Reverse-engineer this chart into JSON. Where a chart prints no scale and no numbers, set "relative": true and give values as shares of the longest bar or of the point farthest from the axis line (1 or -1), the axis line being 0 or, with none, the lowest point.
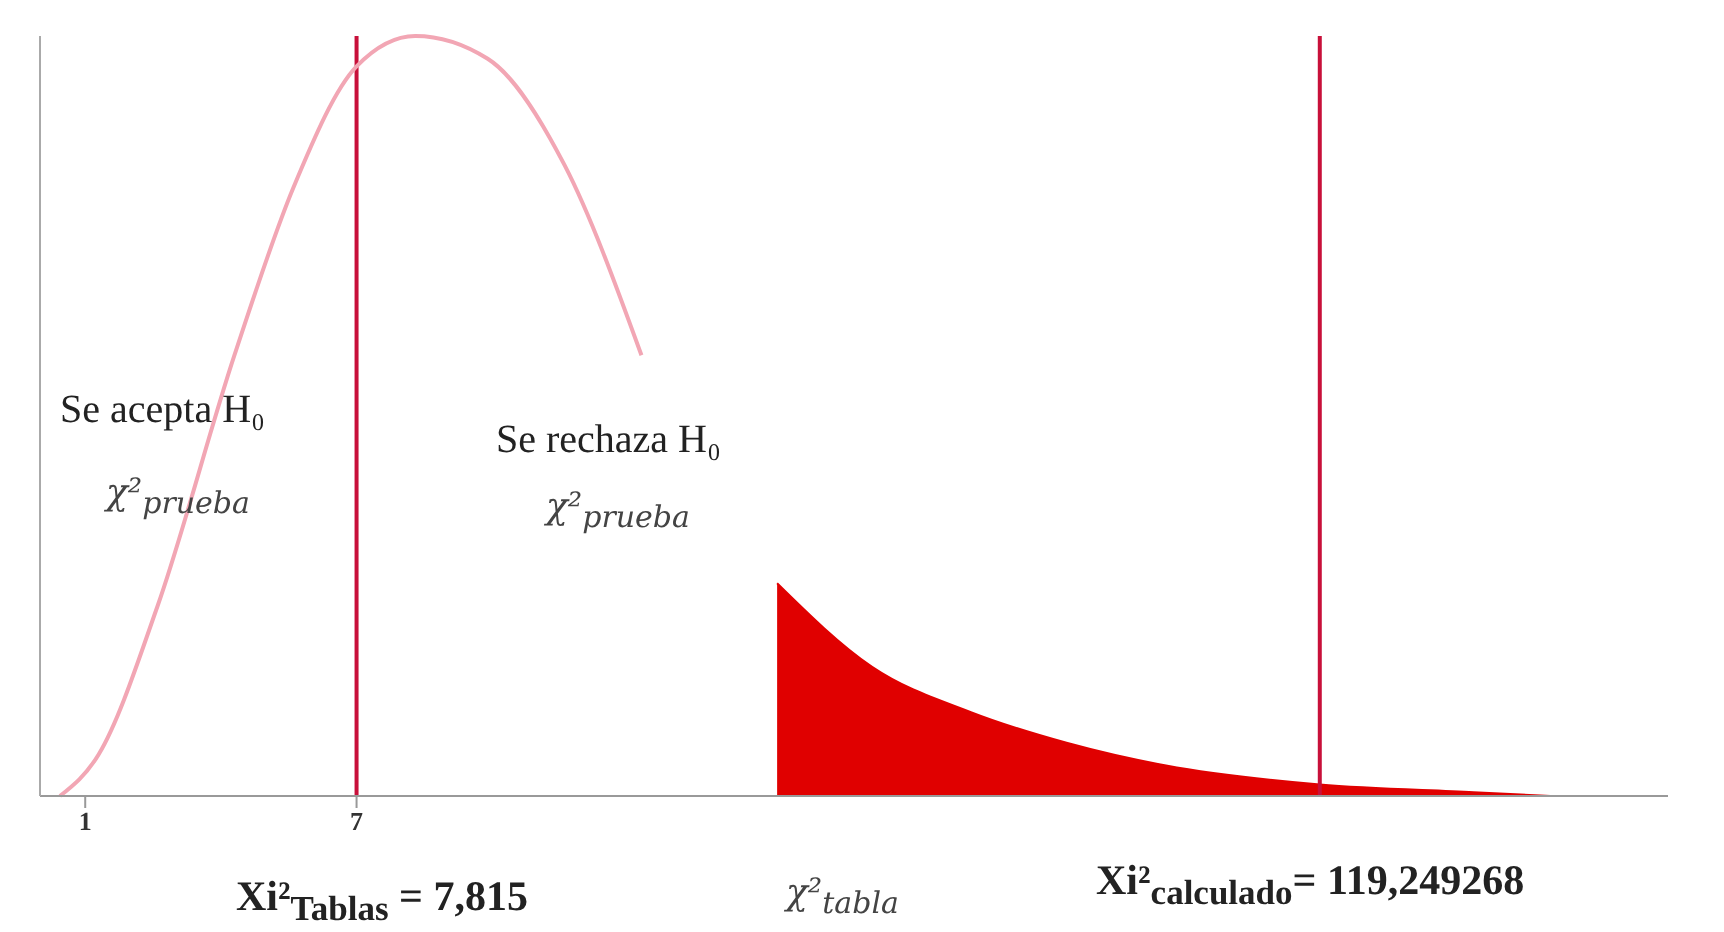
{
  "chart_data": {
    "type": "line",
    "relative": true,
    "xlim": [
      0,
      36
    ],
    "xticks": [
      1,
      7
    ],
    "series": [
      {
        "type": "line",
        "color": "#f2a6b4",
        "x": [
          0.44,
          1.3,
          2.6,
          4.3,
          5.6,
          7,
          8.3,
          9.9,
          11.6,
          13.3
        ],
        "values": [
          0,
          0.055,
          0.25,
          0.58,
          0.8,
          0.96,
          1,
          0.97,
          0.83,
          0.58
        ]
      },
      {
        "type": "area",
        "color": "#e00000",
        "x": [
          16.3,
          18.4,
          20.6,
          22.7,
          24.9,
          28.3,
          31.7,
          33.4
        ],
        "values": [
          0.28,
          0.17,
          0.11,
          0.07,
          0.04,
          0.015,
          0.005,
          0
        ]
      }
    ],
    "ref_lines": [
      {
        "axis": "x",
        "value": 7,
        "color": "#c8103a"
      },
      {
        "axis": "x",
        "value": 28.3,
        "color": "#c8103a"
      }
    ],
    "annotations": [
      "Se acepta H₀",
      "χ²$_{prueba}$",
      "Se rechaza H₀",
      "χ²$_{prueba}$",
      "Xi²$_{Tablas}$ = 7,815",
      "χ²$_{tabla}$",
      "Xi²$_{calculado}$= 119,249268"
    ],
    "grid": false,
    "legend": false
  }
}
